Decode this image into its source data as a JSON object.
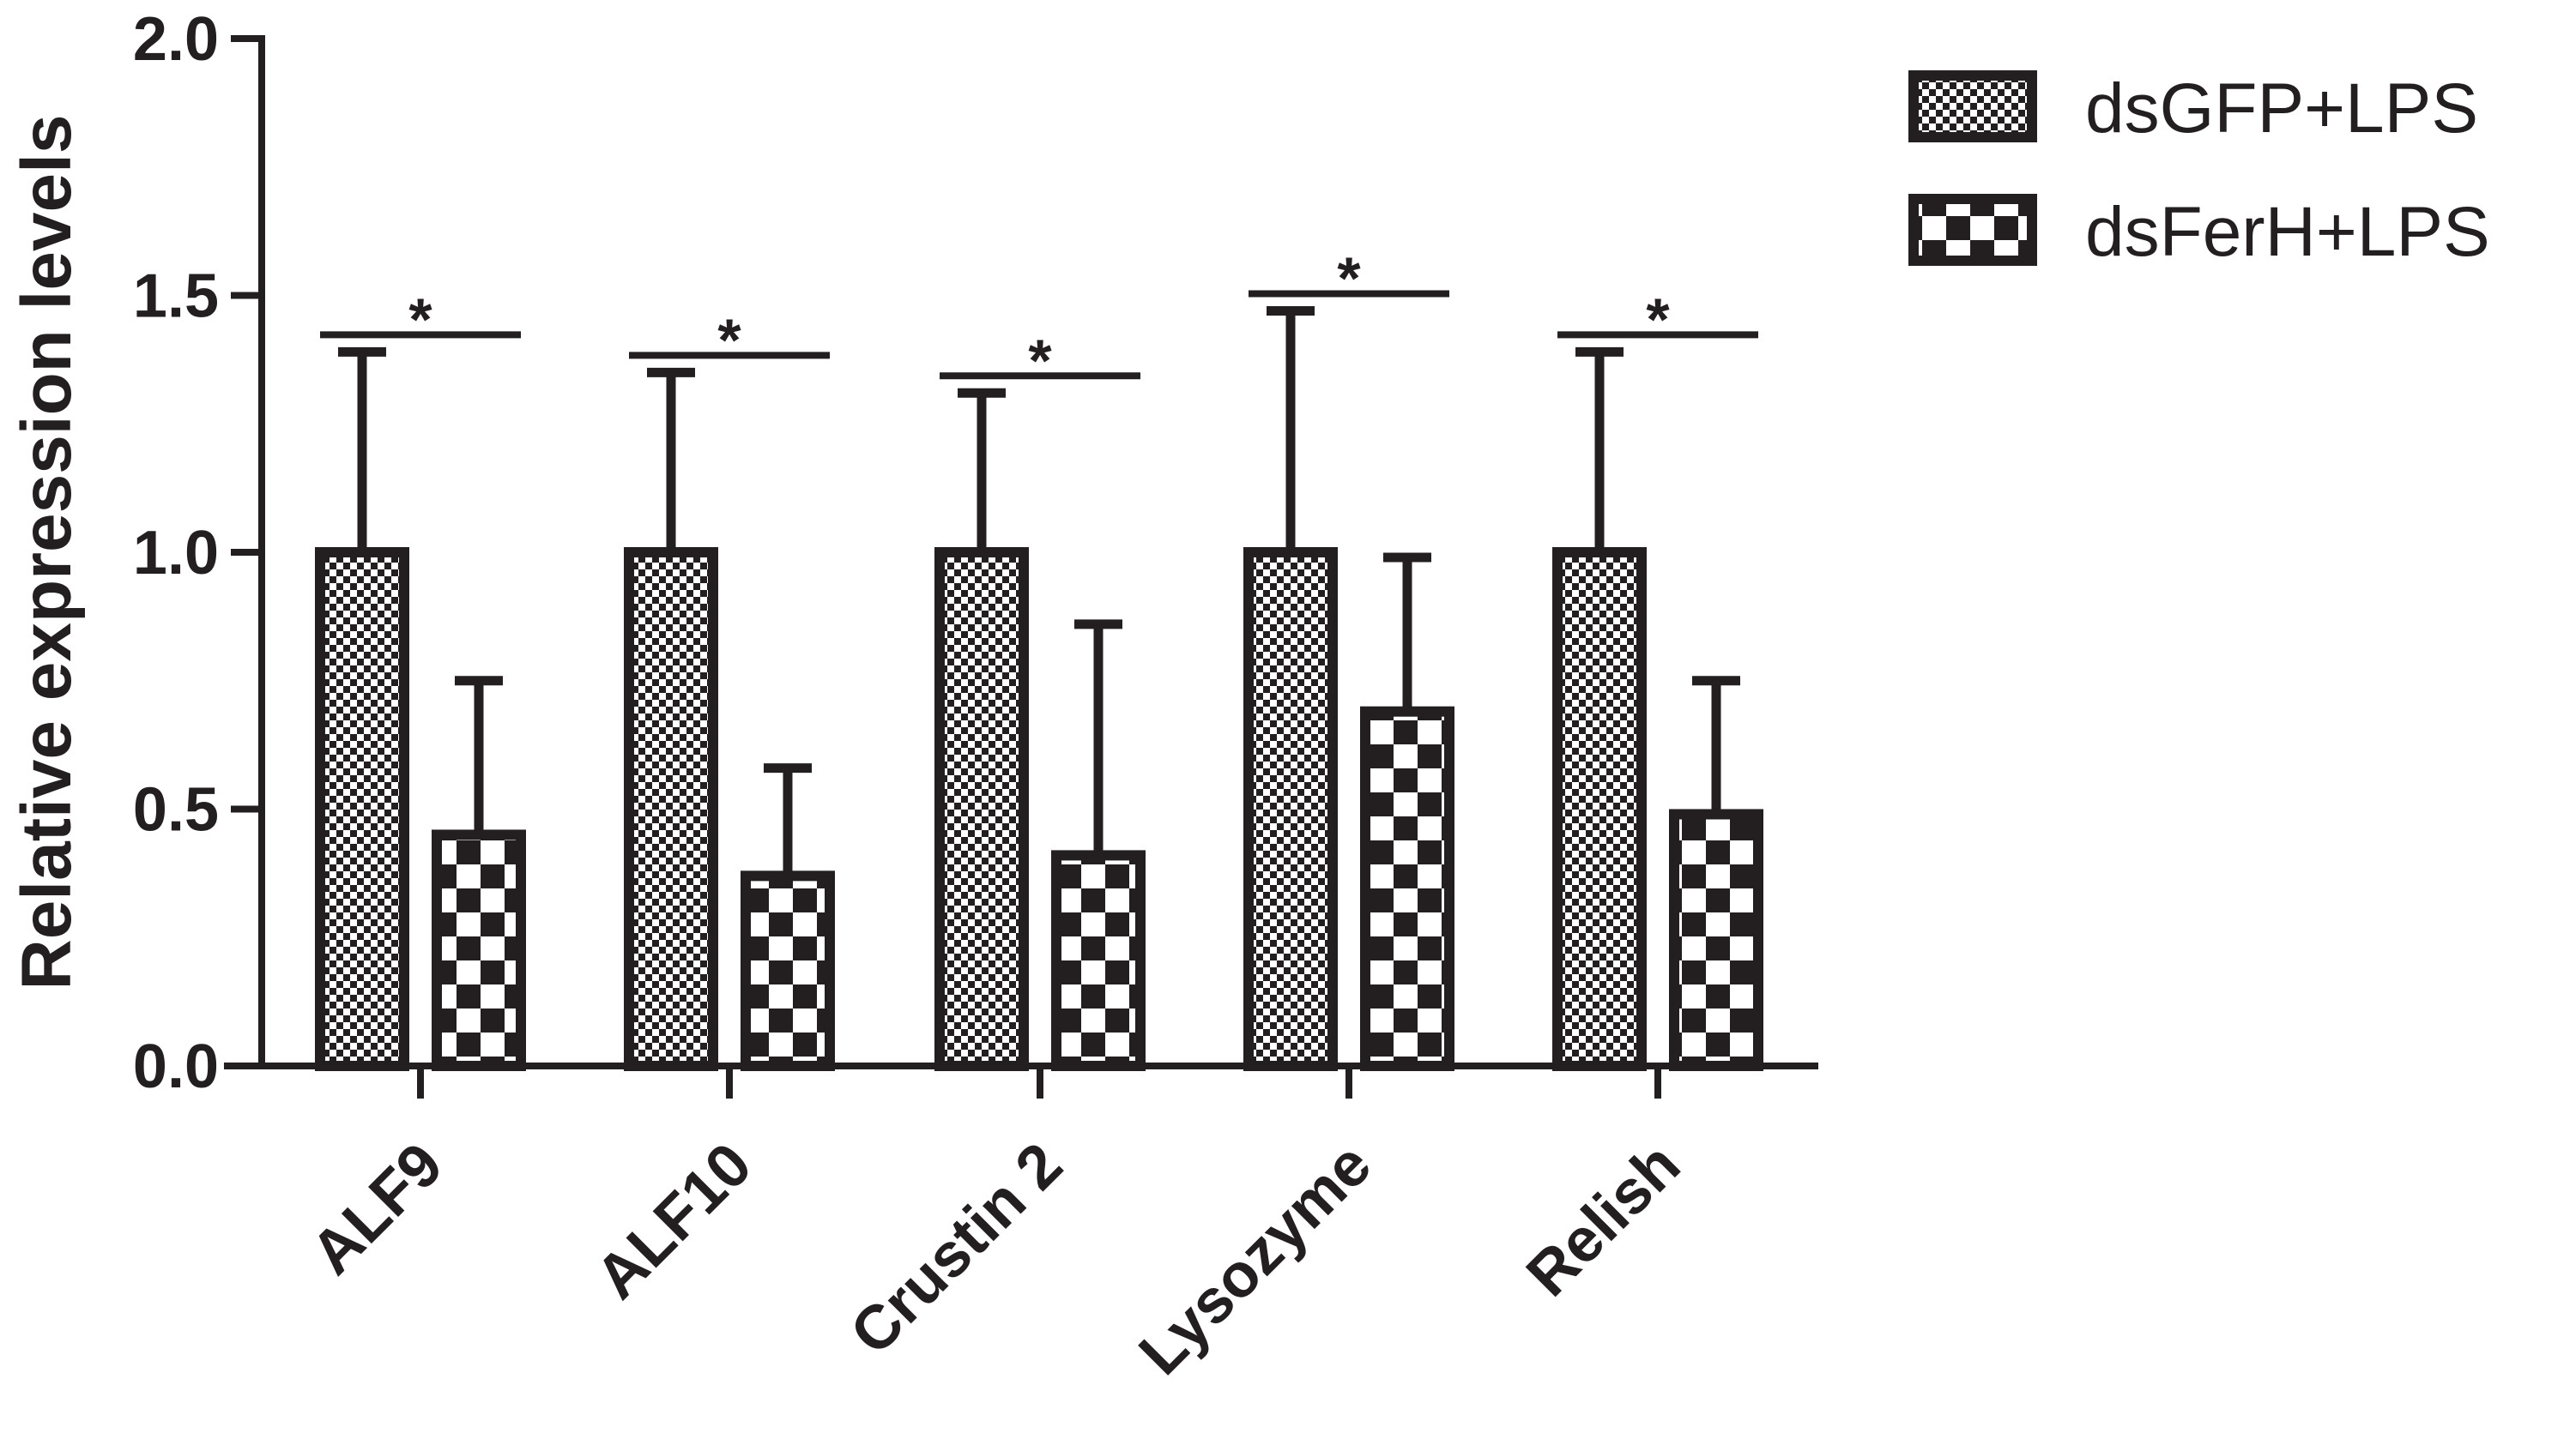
{
  "chart_data": {
    "type": "bar",
    "title": "",
    "xlabel": "",
    "ylabel": "Relative expression levels",
    "ylim": [
      0,
      2.0
    ],
    "yticks": [
      "0.0",
      "0.5",
      "1.0",
      "1.5",
      "2.0"
    ],
    "categories": [
      "ALF9",
      "ALF10",
      "Crustin 2",
      "Lysozyme",
      "Relish"
    ],
    "series": [
      {
        "name": "dsGFP+LPS",
        "pattern": "fine-checker",
        "values": [
          1.0,
          1.0,
          1.0,
          1.0,
          1.0
        ],
        "error": [
          0.39,
          0.35,
          0.31,
          0.47,
          0.39
        ]
      },
      {
        "name": "dsFerH+LPS",
        "pattern": "coarse-checker",
        "values": [
          0.45,
          0.37,
          0.41,
          0.69,
          0.49
        ],
        "error": [
          0.3,
          0.21,
          0.45,
          0.3,
          0.26
        ]
      }
    ],
    "significance": [
      "*",
      "*",
      "*",
      "*",
      "*"
    ],
    "legend_position": "top-right",
    "grid": false,
    "colors": {
      "ink": "#231f20",
      "background": "#ffffff"
    }
  }
}
